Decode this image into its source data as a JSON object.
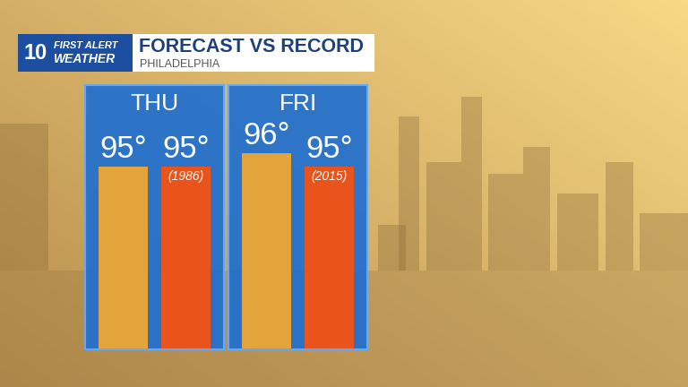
{
  "header": {
    "logo_number": "10",
    "logo_lines": [
      "FIRST ALERT",
      "WEATHER"
    ],
    "title": "FORECAST VS RECORD",
    "subtitle": "PHILADELPHIA"
  },
  "chart_data": [
    {
      "type": "bar",
      "title": "THU",
      "categories": [
        null,
        null
      ],
      "values": [
        95,
        95
      ],
      "value_labels": [
        "95°",
        "95°"
      ],
      "annotations": [
        null,
        "(1986)"
      ],
      "colors": [
        "#e3a43c",
        "#e8541c"
      ],
      "ylim": [
        81.5,
        101
      ],
      "yticks": [],
      "tick_labels": false,
      "data_labels": true
    },
    {
      "type": "bar",
      "title": "FRI",
      "categories": [
        null,
        null
      ],
      "values": [
        96,
        95
      ],
      "value_labels": [
        "96°",
        "95°"
      ],
      "annotations": [
        null,
        "(2015)"
      ],
      "colors": [
        "#e3a43c",
        "#e8541c"
      ],
      "ylim": [
        81.5,
        101
      ],
      "yticks": [],
      "tick_labels": false,
      "data_labels": true
    }
  ]
}
